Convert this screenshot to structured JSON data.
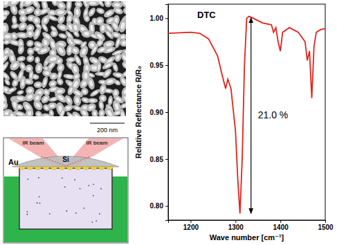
{
  "chart_data": {
    "type": "line",
    "x": [
      1150,
      1200,
      1220,
      1240,
      1260,
      1270,
      1278,
      1283,
      1290,
      1300,
      1305,
      1310,
      1315,
      1320,
      1325,
      1330,
      1340,
      1360,
      1380,
      1385,
      1390,
      1395,
      1400,
      1405,
      1420,
      1440,
      1455,
      1460,
      1465,
      1470,
      1475,
      1480,
      1490,
      1500
    ],
    "series": [
      {
        "name": "DTC",
        "color": "#e3221c",
        "values": [
          0.984,
          0.985,
          0.984,
          0.978,
          0.96,
          0.94,
          0.925,
          0.935,
          0.925,
          0.88,
          0.83,
          0.792,
          0.85,
          0.95,
          1.0,
          1.002,
          1.0,
          0.995,
          0.993,
          0.985,
          0.99,
          0.975,
          0.965,
          0.985,
          0.99,
          0.985,
          0.975,
          0.955,
          0.965,
          0.915,
          0.97,
          0.985,
          0.988,
          0.989
        ]
      }
    ],
    "annotation": "21.0 %",
    "xlabel": "Wave number [cm⁻¹]",
    "ylabel": "Relative Reflectance R/R₀",
    "xlim": [
      1150,
      1500
    ],
    "xticks": [
      1200,
      1300,
      1400,
      1500
    ],
    "ylim": [
      0.785,
      1.015
    ],
    "yticks": [
      {
        "value": 0.8,
        "label": "0.80"
      },
      0.85,
      {
        "value": 0.9,
        "label": "0.90"
      },
      0.95,
      {
        "value": 1,
        "label": "1.00"
      }
    ]
  },
  "sem_image": {
    "scale_bar": "200 nm"
  },
  "schematic": {
    "metal": "Au",
    "prism": "Si",
    "beams": [
      "IR beam",
      "IR beam"
    ]
  }
}
